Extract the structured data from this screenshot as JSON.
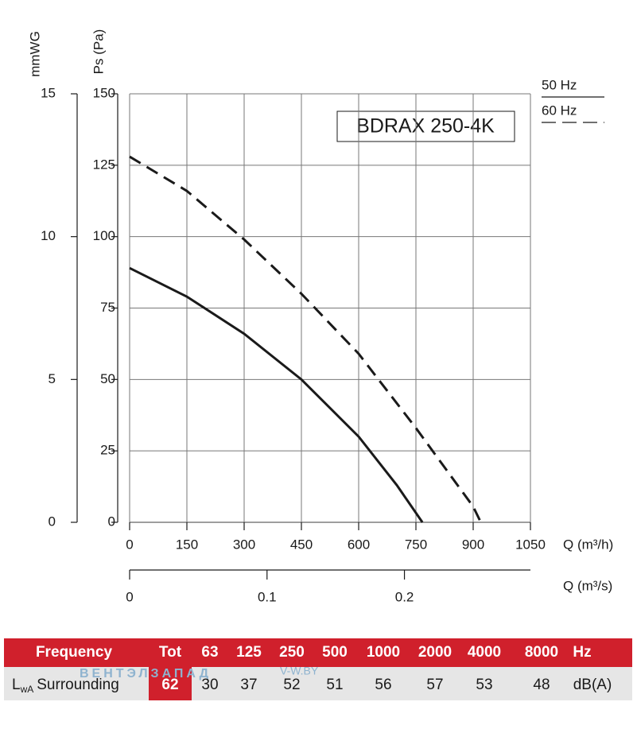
{
  "chart_data": {
    "type": "line",
    "title": "BDRAX 250-4K",
    "xlabel": "Q (m³/h)",
    "ylabel": "Ps (Pa)",
    "y2label": "mmWG",
    "x2label": "Q (m³/s)",
    "xlim": [
      0,
      1050
    ],
    "xticks": [
      0,
      150,
      300,
      450,
      600,
      750,
      900,
      1050
    ],
    "ylim": [
      0,
      150
    ],
    "yticks": [
      0,
      25,
      50,
      75,
      100,
      125,
      150
    ],
    "y2lim": [
      0,
      15
    ],
    "y2ticks": [
      0,
      5,
      10,
      15
    ],
    "x2lim": [
      0,
      0.2917
    ],
    "x2ticks": [
      0,
      0.1,
      0.2
    ],
    "grid": true,
    "series": [
      {
        "name": "50 Hz",
        "color": "#1a1a1a",
        "dash": false,
        "x": [
          0,
          150,
          300,
          450,
          600,
          700,
          767
        ],
        "values": [
          89,
          79,
          66,
          50,
          30,
          13,
          0
        ]
      },
      {
        "name": "60 Hz",
        "color": "#1a1a1a",
        "dash": true,
        "x": [
          0,
          150,
          300,
          450,
          600,
          750,
          900,
          920
        ],
        "values": [
          128,
          116,
          99,
          80,
          59,
          33,
          5.5,
          0
        ]
      }
    ]
  },
  "table": {
    "header": [
      "Frequency",
      "Tot",
      "63",
      "125",
      "250",
      "500",
      "1000",
      "2000",
      "4000",
      "8000",
      "Hz"
    ],
    "row_label": [
      "L",
      "wA",
      "Surrounding"
    ],
    "row_values": [
      62,
      30,
      37,
      52,
      51,
      56,
      57,
      53,
      48
    ],
    "row_unit": "dB(A)"
  },
  "watermark": [
    "ВЕНТЭЛЗАПАД",
    "V-W.BY"
  ]
}
